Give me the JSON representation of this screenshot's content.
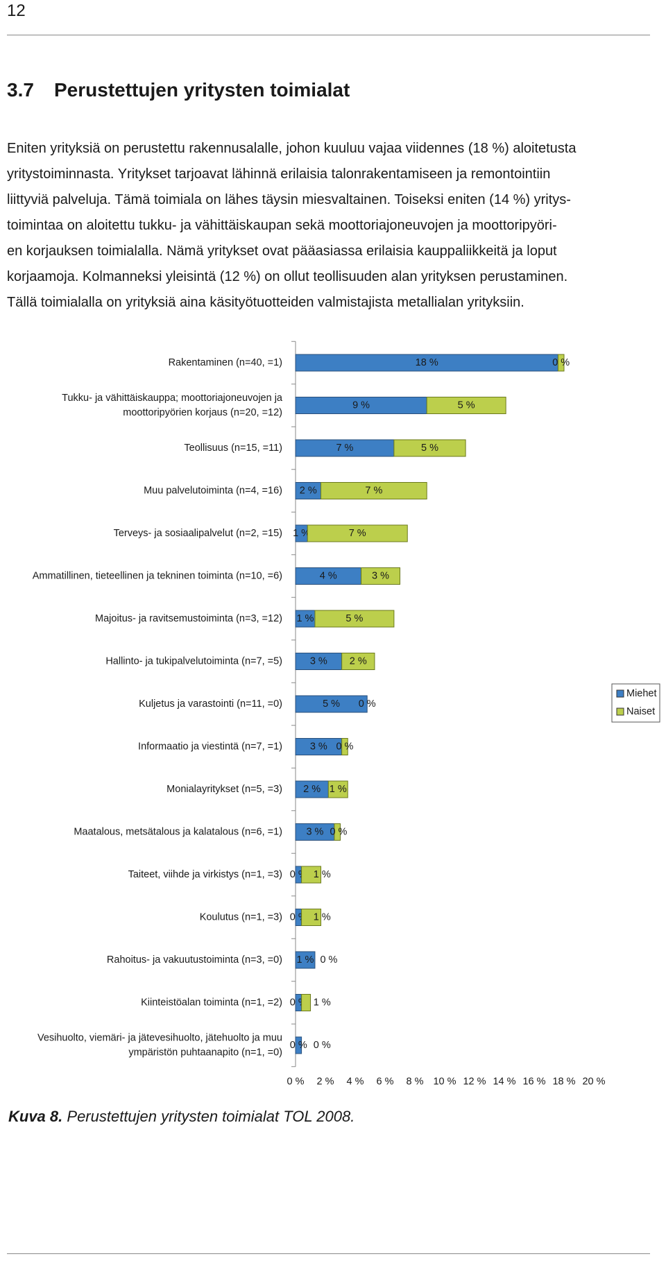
{
  "header": {
    "page_number": "12"
  },
  "heading": {
    "number": "3.7",
    "text": "Perustettujen yritysten toimialat"
  },
  "paragraph_lines": [
    "Eniten yrityksiä on perustettu rakennusalalle, johon kuuluu vajaa viidennes (18 %) aloitetusta",
    "yritystoiminnasta. Yritykset tarjoavat lähinnä erilaisia talonrakentamiseen ja remontointiin",
    "liittyviä palveluja. Tämä toimiala on lähes täysin miesvaltainen. Toiseksi eniten (14 %) yritys-",
    "toimintaa on aloitettu tukku- ja vähittäiskaupan sekä moottoriajoneuvojen ja moottoripyöri-",
    "en korjauksen toimialalla. Nämä yritykset ovat pääasiassa erilaisia kauppaliikkeitä ja loput",
    "korjaamoja. Kolmanneksi yleisintä (12 %) on ollut teollisuuden alan yrityksen perustaminen.",
    "Tällä toimialalla on yrityksiä aina käsityötuotteiden valmistajista metallialan yrityksiin."
  ],
  "chart_data": {
    "type": "bar",
    "orientation": "horizontal",
    "stacked": true,
    "categories": [
      "Rakentaminen (n=40, =1)",
      "Tukku- ja vähittäiskauppa; moottoriajoneuvojen ja moottoripyörien korjaus (n=20, =12)",
      "Teollisuus (n=15, =11)",
      "Muu palvelutoiminta (n=4, =16)",
      "Terveys- ja sosiaalipalvelut (n=2, =15)",
      "Ammatillinen, tieteellinen ja tekninen toiminta (n=10, =6)",
      "Majoitus- ja ravitsemustoiminta (n=3, =12)",
      "Hallinto- ja tukipalvelutoiminta (n=7, =5)",
      "Kuljetus ja varastointi (n=11, =0)",
      "Informaatio ja viestintä (n=7, =1)",
      "Monialayritykset (n=5, =3)",
      "Maatalous, metsätalous ja kalatalous (n=6, =1)",
      "Taiteet, viihde ja virkistys (n=1, =3)",
      "Koulutus (n=1, =3)",
      "Rahoitus- ja vakuutustoiminta (n=3, =0)",
      "Kiinteistöalan toiminta (n=1, =2)",
      "Vesihuolto, viemäri- ja jätevesihuolto, jätehuolto ja muu ympäristön puhtaanapito (n=1, =0)"
    ],
    "series": [
      {
        "name": "Miehet",
        "color": "#3d7fc4",
        "values": [
          17.6,
          8.8,
          6.6,
          1.7,
          0.8,
          4.4,
          1.3,
          3.1,
          4.8,
          3.1,
          2.2,
          2.6,
          0.4,
          0.4,
          1.3,
          0.4,
          0.4
        ],
        "value_labels": [
          "18 %",
          "9 %",
          "7 %",
          "2 %",
          "1 %",
          "4 %",
          "1 %",
          "3 %",
          "5 %",
          "3 %",
          "2 %",
          "3 %",
          "0 %",
          "0 %",
          "1 %",
          "0 %",
          "0 %"
        ]
      },
      {
        "name": "Naiset",
        "color": "#bccf4c",
        "values": [
          0.4,
          5.3,
          4.8,
          7.1,
          6.7,
          2.6,
          5.3,
          2.2,
          0,
          0.4,
          1.3,
          0.4,
          1.3,
          1.3,
          0,
          0.6,
          0
        ],
        "value_labels": [
          "0 %",
          "5 %",
          "5 %",
          "7 %",
          "7 %",
          "3 %",
          "5 %",
          "2 %",
          "0 %",
          "0 %",
          "1 %",
          "0 %",
          "1 %",
          "1 %",
          "0 %",
          "1 %",
          "0 %"
        ]
      }
    ],
    "xlim": [
      0,
      20
    ],
    "xticks": [
      {
        "value": 0,
        "label": "0 %"
      },
      {
        "value": 2,
        "label": "2 %"
      },
      {
        "value": 4,
        "label": "4 %"
      },
      {
        "value": 6,
        "label": "6 %"
      },
      {
        "value": 8,
        "label": "8 %"
      },
      {
        "value": 10,
        "label": "10 %"
      },
      {
        "value": 12,
        "label": "12 %"
      },
      {
        "value": 14,
        "label": "14 %"
      },
      {
        "value": 16,
        "label": "16 %"
      },
      {
        "value": 18,
        "label": "18 %"
      },
      {
        "value": 20,
        "label": "20 %"
      }
    ],
    "legend": "right"
  },
  "caption": {
    "label": "Kuva 8.",
    "text": "Perustettujen yritysten toimialat TOL 2008."
  }
}
